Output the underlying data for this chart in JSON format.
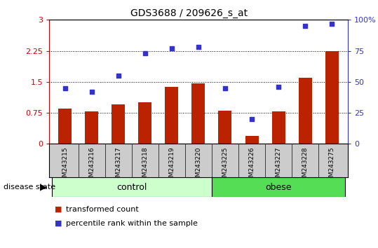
{
  "title": "GDS3688 / 209626_s_at",
  "samples": [
    "GSM243215",
    "GSM243216",
    "GSM243217",
    "GSM243218",
    "GSM243219",
    "GSM243220",
    "GSM243225",
    "GSM243226",
    "GSM243227",
    "GSM243228",
    "GSM243275"
  ],
  "bar_values": [
    0.85,
    0.78,
    0.95,
    1.0,
    1.38,
    1.47,
    0.8,
    0.2,
    0.78,
    1.6,
    2.25
  ],
  "dot_values_pct": [
    45,
    42,
    55,
    73,
    77,
    78,
    45,
    20,
    46,
    95,
    97
  ],
  "bar_color": "#bb2200",
  "dot_color": "#3333cc",
  "ylim_left": [
    0,
    3
  ],
  "ylim_right": [
    0,
    100
  ],
  "yticks_left": [
    0,
    0.75,
    1.5,
    2.25,
    3
  ],
  "ytick_labels_left": [
    "0",
    "0.75",
    "1.5",
    "2.25",
    "3"
  ],
  "yticks_right": [
    0,
    25,
    50,
    75,
    100
  ],
  "ytick_labels_right": [
    "0",
    "25",
    "50",
    "75",
    "100%"
  ],
  "hlines": [
    0.75,
    1.5,
    2.25
  ],
  "n_control": 6,
  "n_obese": 5,
  "group_label_control": "control",
  "group_label_obese": "obese",
  "disease_state_label": "disease state",
  "legend_bar_label": "transformed count",
  "legend_dot_label": "percentile rank within the sample",
  "control_color": "#ccffcc",
  "obese_color": "#55dd55",
  "left_axis_color": "#cc0000",
  "right_axis_color": "#3333cc",
  "plot_bg": "#ffffff",
  "xlabel_bg": "#cccccc",
  "bar_width": 0.5
}
